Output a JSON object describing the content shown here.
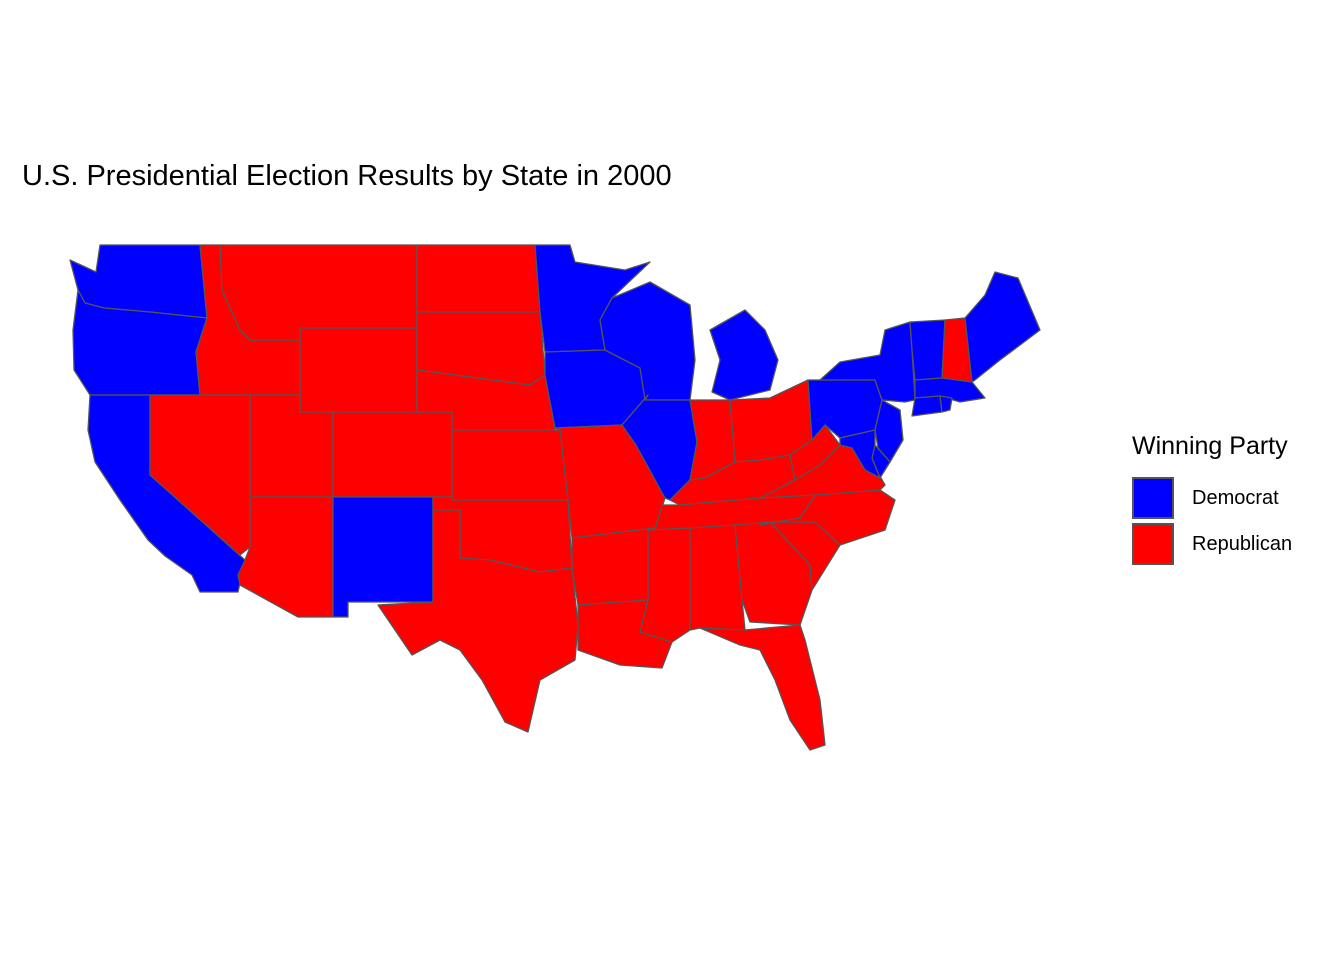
{
  "chart": {
    "title": "U.S. Presidential Election Results by State in 2000",
    "legend": {
      "title": "Winning Party",
      "items": [
        {
          "label": "Democrat",
          "color": "#0000ff"
        },
        {
          "label": "Republican",
          "color": "#ff0000"
        }
      ],
      "placement": "right"
    }
  },
  "states": [
    {
      "name": "Washington",
      "party": "Democrat"
    },
    {
      "name": "Oregon",
      "party": "Democrat"
    },
    {
      "name": "California",
      "party": "Democrat"
    },
    {
      "name": "Nevada",
      "party": "Republican"
    },
    {
      "name": "Idaho",
      "party": "Republican"
    },
    {
      "name": "Montana",
      "party": "Republican"
    },
    {
      "name": "Wyoming",
      "party": "Republican"
    },
    {
      "name": "Utah",
      "party": "Republican"
    },
    {
      "name": "Arizona",
      "party": "Republican"
    },
    {
      "name": "Colorado",
      "party": "Republican"
    },
    {
      "name": "New Mexico",
      "party": "Democrat"
    },
    {
      "name": "North Dakota",
      "party": "Republican"
    },
    {
      "name": "South Dakota",
      "party": "Republican"
    },
    {
      "name": "Nebraska",
      "party": "Republican"
    },
    {
      "name": "Kansas",
      "party": "Republican"
    },
    {
      "name": "Oklahoma",
      "party": "Republican"
    },
    {
      "name": "Texas",
      "party": "Republican"
    },
    {
      "name": "Minnesota",
      "party": "Democrat"
    },
    {
      "name": "Iowa",
      "party": "Democrat"
    },
    {
      "name": "Missouri",
      "party": "Republican"
    },
    {
      "name": "Arkansas",
      "party": "Republican"
    },
    {
      "name": "Louisiana",
      "party": "Republican"
    },
    {
      "name": "Wisconsin",
      "party": "Democrat"
    },
    {
      "name": "Illinois",
      "party": "Democrat"
    },
    {
      "name": "Michigan",
      "party": "Democrat"
    },
    {
      "name": "Indiana",
      "party": "Republican"
    },
    {
      "name": "Ohio",
      "party": "Republican"
    },
    {
      "name": "Kentucky",
      "party": "Republican"
    },
    {
      "name": "Tennessee",
      "party": "Republican"
    },
    {
      "name": "Mississippi",
      "party": "Republican"
    },
    {
      "name": "Alabama",
      "party": "Republican"
    },
    {
      "name": "Georgia",
      "party": "Republican"
    },
    {
      "name": "Florida",
      "party": "Republican"
    },
    {
      "name": "South Carolina",
      "party": "Republican"
    },
    {
      "name": "North Carolina",
      "party": "Republican"
    },
    {
      "name": "Virginia",
      "party": "Republican"
    },
    {
      "name": "West Virginia",
      "party": "Republican"
    },
    {
      "name": "Pennsylvania",
      "party": "Democrat"
    },
    {
      "name": "New York",
      "party": "Democrat"
    },
    {
      "name": "New Jersey",
      "party": "Democrat"
    },
    {
      "name": "Delaware",
      "party": "Democrat"
    },
    {
      "name": "Maryland",
      "party": "Democrat"
    },
    {
      "name": "Vermont",
      "party": "Democrat"
    },
    {
      "name": "New Hampshire",
      "party": "Republican"
    },
    {
      "name": "Maine",
      "party": "Democrat"
    },
    {
      "name": "Massachusetts",
      "party": "Democrat"
    },
    {
      "name": "Connecticut",
      "party": "Democrat"
    },
    {
      "name": "Rhode Island",
      "party": "Democrat"
    }
  ]
}
